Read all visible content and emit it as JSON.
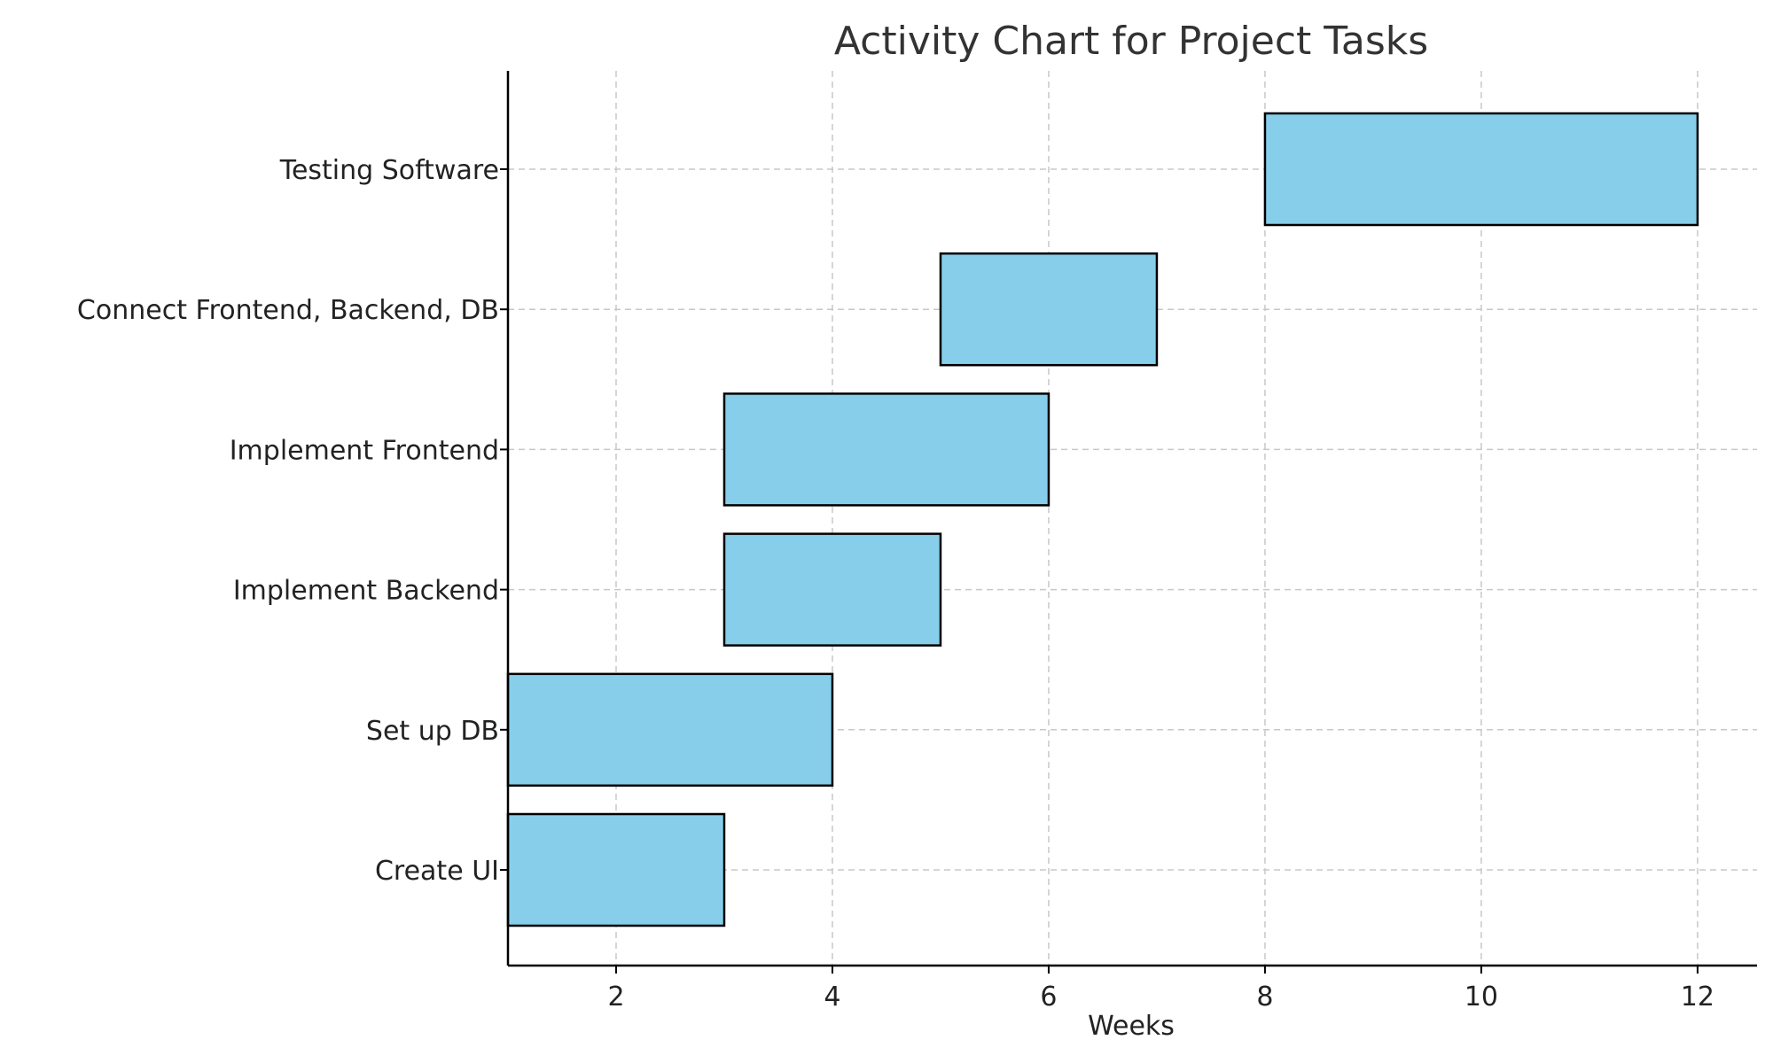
{
  "chart_data": {
    "type": "bar",
    "orientation": "horizontal",
    "title": "Activity Chart for Project Tasks",
    "xlabel": "Weeks",
    "ylabel": "",
    "xlim": [
      1,
      12.55
    ],
    "xticks": [
      2,
      4,
      6,
      8,
      10,
      12
    ],
    "grid": true,
    "bar_color": "#87CEEB",
    "bar_edge_color": "#000000",
    "grid_color": "#c8c8c8",
    "tasks": [
      {
        "label": "Create UI",
        "start": 1,
        "end": 3
      },
      {
        "label": "Set up DB",
        "start": 1,
        "end": 4
      },
      {
        "label": "Implement Backend",
        "start": 3,
        "end": 5
      },
      {
        "label": "Implement Frontend",
        "start": 3,
        "end": 6
      },
      {
        "label": "Connect Frontend, Backend, DB",
        "start": 5,
        "end": 7
      },
      {
        "label": "Testing Software",
        "start": 8,
        "end": 12
      }
    ]
  }
}
